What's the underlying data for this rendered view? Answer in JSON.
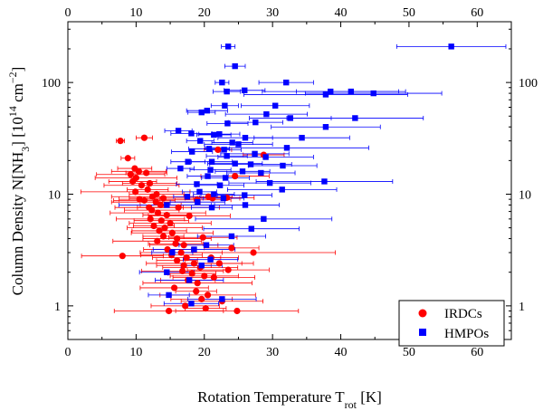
{
  "chart_data": {
    "type": "scatter",
    "xlabel_main": "Rotation Temperature T",
    "xlabel_sub": "rot",
    "xlabel_unit": " [K]",
    "ylabel_main": "Column Density N[NH",
    "ylabel_sub": "3",
    "ylabel_mid": "] [10",
    "ylabel_sup": "14",
    "ylabel_unit": " cm",
    "ylabel_sup2": "−2",
    "ylabel_end": "]",
    "xlim": [
      0,
      65
    ],
    "ylim_log": [
      0.5,
      350
    ],
    "xticks": [
      0,
      10,
      20,
      30,
      40,
      50,
      60
    ],
    "xtick_labels": [
      "0",
      "10",
      "20",
      "30",
      "40",
      "50",
      "60"
    ],
    "yticks": [
      1,
      10,
      100
    ],
    "ytick_labels": [
      "1",
      "10",
      "100"
    ],
    "legend_position": "bottom-right",
    "series": [
      {
        "name": "IRDCs",
        "marker": "circle",
        "color": "#ff0000",
        "points": [
          [
            7.7,
            30,
            0.6
          ],
          [
            11.2,
            32,
            1.2
          ],
          [
            8.8,
            21,
            1.0
          ],
          [
            22.0,
            25.0,
            2.0
          ],
          [
            28.7,
            22.5,
            3.0
          ],
          [
            9.8,
            17,
            2.5
          ],
          [
            10.4,
            16,
            4.0
          ],
          [
            9.2,
            15,
            5.0
          ],
          [
            11.5,
            15.5,
            3.0
          ],
          [
            10.0,
            14,
            6.0
          ],
          [
            9.5,
            13,
            3.5
          ],
          [
            12.0,
            12.5,
            4.0
          ],
          [
            10.8,
            12,
            5.5
          ],
          [
            11.7,
            11,
            3.0
          ],
          [
            9.9,
            10.5,
            8.0
          ],
          [
            13.0,
            10,
            4.0
          ],
          [
            12.4,
            9.5,
            6.0
          ],
          [
            10.5,
            9,
            3.0
          ],
          [
            14.0,
            9.2,
            5.0
          ],
          [
            11.2,
            8.8,
            4.5
          ],
          [
            12.9,
            8.5,
            6.5
          ],
          [
            13.6,
            8.0,
            3.0
          ],
          [
            11.9,
            7.6,
            5.0
          ],
          [
            12.3,
            7.2,
            4.0
          ],
          [
            13.2,
            6.8,
            7.0
          ],
          [
            14.5,
            6.5,
            3.5
          ],
          [
            12.1,
            6.0,
            5.0
          ],
          [
            13.7,
            5.8,
            4.0
          ],
          [
            15.0,
            5.5,
            6.0
          ],
          [
            12.6,
            5.2,
            3.0
          ],
          [
            14.2,
            5.0,
            5.5
          ],
          [
            13.4,
            4.7,
            4.0
          ],
          [
            15.3,
            4.5,
            6.0
          ],
          [
            14.0,
            4.2,
            3.0
          ],
          [
            16.0,
            4.0,
            5.0
          ],
          [
            13.1,
            3.8,
            6.5
          ],
          [
            15.8,
            3.6,
            4.0
          ],
          [
            17.0,
            3.5,
            5.0
          ],
          [
            14.6,
            3.2,
            3.5
          ],
          [
            16.6,
            3.0,
            6.0
          ],
          [
            15.2,
            2.85,
            4.5
          ],
          [
            17.4,
            2.7,
            5.0
          ],
          [
            16.0,
            2.55,
            3.0
          ],
          [
            18.5,
            2.4,
            7.0
          ],
          [
            17.0,
            2.3,
            4.0
          ],
          [
            19.4,
            2.2,
            5.5
          ],
          [
            16.8,
            2.05,
            6.0
          ],
          [
            18.2,
            1.95,
            3.5
          ],
          [
            20.0,
            1.85,
            5.0
          ],
          [
            21.4,
            1.8,
            6.0
          ],
          [
            17.6,
            1.7,
            4.0
          ],
          [
            19.0,
            1.6,
            8.0
          ],
          [
            22.2,
            2.4,
            5.0
          ],
          [
            23.5,
            2.1,
            6.0
          ],
          [
            21.0,
            2.7,
            4.0
          ],
          [
            15.6,
            1.45,
            5.0
          ],
          [
            18.8,
            1.35,
            3.0
          ],
          [
            20.5,
            1.25,
            7.0
          ],
          [
            19.6,
            1.15,
            4.5
          ],
          [
            22.6,
            1.1,
            6.0
          ],
          [
            17.2,
            1.0,
            5.0
          ],
          [
            20.2,
            0.95,
            3.0
          ],
          [
            14.8,
            0.9,
            8.0
          ],
          [
            24.8,
            0.9,
            9.0
          ],
          [
            8.0,
            2.8,
            6.0
          ],
          [
            27.2,
            3.0,
            12.0
          ],
          [
            24.0,
            3.3,
            4.0
          ],
          [
            19.8,
            4.1,
            5.0
          ],
          [
            20.6,
            9.5,
            3.5
          ],
          [
            18.9,
            8.9,
            5.0
          ],
          [
            16.2,
            7.6,
            6.0
          ],
          [
            21.2,
            9.2,
            4.0
          ],
          [
            24.5,
            14.5,
            5.0
          ],
          [
            23.3,
            9.3,
            4.0
          ],
          [
            17.8,
            6.4,
            6.0
          ]
        ]
      },
      {
        "name": "HMPOs",
        "marker": "square",
        "color": "#0000ff",
        "points": [
          [
            23.5,
            210,
            1.0
          ],
          [
            56.2,
            210,
            8.0
          ],
          [
            24.5,
            140,
            1.5
          ],
          [
            22.6,
            100,
            1.0
          ],
          [
            32.0,
            100,
            4.0
          ],
          [
            25.9,
            85,
            3.0
          ],
          [
            23.3,
            83,
            2.0
          ],
          [
            38.5,
            83,
            10.0
          ],
          [
            41.5,
            83,
            8.0
          ],
          [
            44.8,
            80,
            10.0
          ],
          [
            37.8,
            78,
            12.0
          ],
          [
            23.0,
            62,
            2.0
          ],
          [
            30.4,
            62,
            5.0
          ],
          [
            20.4,
            56,
            3.0
          ],
          [
            19.6,
            54,
            2.0
          ],
          [
            29.1,
            52,
            6.0
          ],
          [
            32.6,
            48,
            6.0
          ],
          [
            42.1,
            48,
            10.0
          ],
          [
            27.5,
            44,
            4.0
          ],
          [
            23.4,
            43,
            3.0
          ],
          [
            37.8,
            40,
            8.0
          ],
          [
            16.2,
            37,
            2.0
          ],
          [
            18.1,
            35,
            3.0
          ],
          [
            21.4,
            34,
            2.5
          ],
          [
            22.2,
            34.5,
            3.0
          ],
          [
            26.0,
            32,
            4.0
          ],
          [
            34.3,
            32,
            7.0
          ],
          [
            19.4,
            30,
            2.0
          ],
          [
            24.1,
            29,
            3.0
          ],
          [
            25.0,
            28,
            5.0
          ],
          [
            20.7,
            25.5,
            3.0
          ],
          [
            22.9,
            25,
            2.5
          ],
          [
            32.1,
            26,
            12.0
          ],
          [
            18.2,
            24,
            3.0
          ],
          [
            27.4,
            23,
            5.0
          ],
          [
            29.0,
            21.5,
            7.0
          ],
          [
            23.3,
            22,
            3.0
          ],
          [
            17.6,
            19.5,
            2.5
          ],
          [
            21.1,
            19.5,
            3.0
          ],
          [
            24.5,
            18.8,
            4.0
          ],
          [
            26.8,
            18.5,
            6.0
          ],
          [
            31.5,
            18.0,
            5.0
          ],
          [
            16.5,
            17.0,
            2.0
          ],
          [
            20.9,
            16.5,
            3.0
          ],
          [
            25.6,
            16.0,
            4.0
          ],
          [
            28.3,
            15.5,
            5.0
          ],
          [
            20.5,
            14.5,
            3.0
          ],
          [
            23.1,
            14.0,
            3.5
          ],
          [
            37.6,
            13.0,
            10.0
          ],
          [
            29.6,
            12.6,
            6.0
          ],
          [
            18.9,
            12.3,
            3.0
          ],
          [
            22.3,
            12.0,
            3.5
          ],
          [
            31.4,
            11.0,
            8.0
          ],
          [
            19.3,
            10.5,
            2.5
          ],
          [
            21.4,
            10.0,
            3.0
          ],
          [
            25.9,
            9.8,
            4.0
          ],
          [
            17.5,
            9.5,
            2.0
          ],
          [
            22.8,
            9.2,
            3.0
          ],
          [
            19.0,
            8.5,
            4.0
          ],
          [
            26.0,
            8.0,
            5.0
          ],
          [
            14.5,
            8.0,
            7.0
          ],
          [
            21.1,
            7.6,
            3.0
          ],
          [
            28.7,
            6.0,
            10.0
          ],
          [
            26.9,
            4.9,
            7.0
          ],
          [
            24.0,
            4.2,
            5.0
          ],
          [
            20.3,
            3.5,
            4.0
          ],
          [
            18.5,
            3.2,
            6.0
          ],
          [
            15.3,
            3.0,
            3.0
          ],
          [
            20.9,
            2.6,
            4.0
          ],
          [
            19.6,
            2.3,
            3.0
          ],
          [
            14.5,
            2.0,
            4.0
          ],
          [
            17.8,
            1.7,
            5.0
          ],
          [
            14.8,
            1.25,
            3.0
          ],
          [
            18.1,
            1.05,
            4.0
          ],
          [
            22.6,
            1.15,
            5.0
          ]
        ]
      }
    ]
  }
}
